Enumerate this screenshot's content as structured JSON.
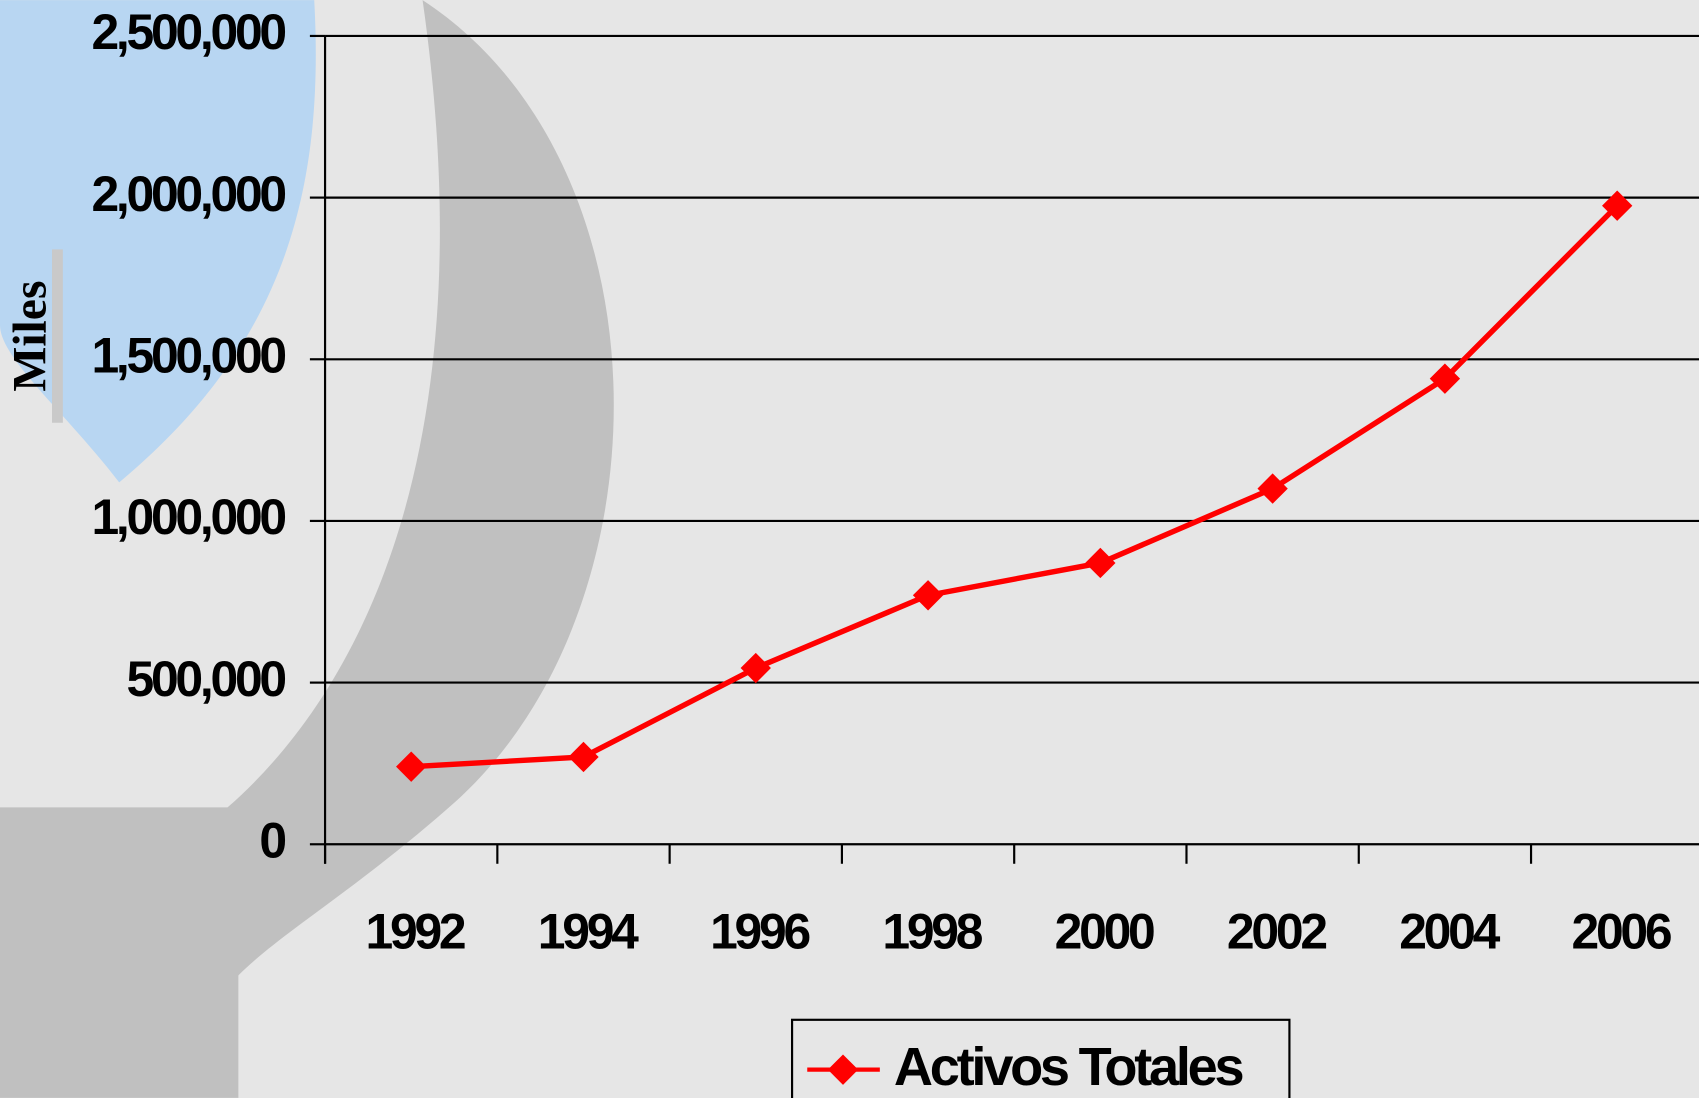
{
  "chart_data": {
    "type": "line",
    "y_label": "Miles",
    "categories": [
      "1992",
      "1994",
      "1996",
      "1998",
      "2000",
      "2002",
      "2004",
      "2006"
    ],
    "series": [
      {
        "name": "Activos Totales",
        "color": "#ff0000",
        "values": [
          240000,
          270000,
          545000,
          770000,
          870000,
          1100000,
          1440000,
          1975000
        ]
      }
    ],
    "ylim": [
      0,
      2500000
    ],
    "yticks": [
      0,
      {
        "value": 500000,
        "label": "500,000"
      },
      {
        "value": 1000000,
        "label": "1,000,000"
      },
      {
        "value": 1500000,
        "label": "1,500,000"
      },
      {
        "value": 2000000,
        "label": "2,000,000"
      },
      {
        "value": 2500000,
        "label": "2,500,000"
      }
    ],
    "grid": true,
    "legend": "bottom"
  }
}
